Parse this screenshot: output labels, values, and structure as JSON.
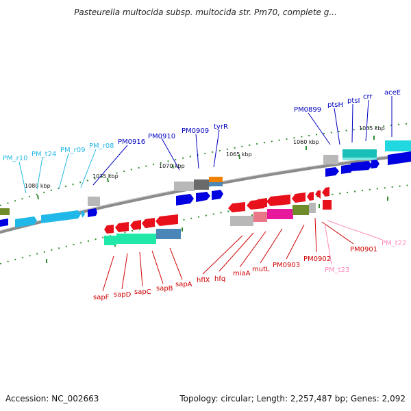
{
  "title": "Pasteurella multocida subsp. multocida str. Pm70, complete g...",
  "footer": {
    "accession": "Accession: NC_002663",
    "summary": "Topology: circular; Length: 2,257,487 bp; Genes: 2,092"
  },
  "colors": {
    "backbone": "#8c8c8c",
    "tick_green": "#2e8b2e",
    "label_blue": "#0000c0",
    "label_cyan": "#22b8e6",
    "label_red": "#d00000",
    "label_pink": "#ff88bb",
    "gene_red": "#e8101a",
    "gene_blue": "#0000e0",
    "gene_cyan": "#20b8e8",
    "gene_gray": "#b8b8b8",
    "gene_darkgray": "#6a6a6a",
    "gene_teal": "#18c0b8",
    "gene_green": "#20e8a8",
    "gene_steel": "#4a86b8",
    "gene_olive": "#6e8c2a",
    "gene_magenta": "#e8189c",
    "gene_pink": "#e87888",
    "gene_orange": "#f08000"
  },
  "scale_ticks": [
    "1080 kbp",
    "1075 kbp",
    "1070 kbp",
    "1065 kbp",
    "1060 kbp",
    "1055 kbp"
  ],
  "upper_labels": [
    {
      "text": "PM_r10",
      "color": "label_cyan"
    },
    {
      "text": "PM_t24",
      "color": "label_cyan"
    },
    {
      "text": "PM_r09",
      "color": "label_cyan"
    },
    {
      "text": "PM_r08",
      "color": "label_cyan"
    },
    {
      "text": "PM0916",
      "color": "label_blue"
    },
    {
      "text": "PM0910",
      "color": "label_blue"
    },
    {
      "text": "PM0909",
      "color": "label_blue"
    },
    {
      "text": "tyrR",
      "color": "label_blue"
    },
    {
      "text": "PM0899",
      "color": "label_blue"
    },
    {
      "text": "ptsH",
      "color": "label_blue"
    },
    {
      "text": "ptsI",
      "color": "label_blue"
    },
    {
      "text": "crr",
      "color": "label_blue"
    },
    {
      "text": "aceE",
      "color": "label_blue"
    }
  ],
  "lower_labels": [
    {
      "text": "sapF",
      "color": "label_red"
    },
    {
      "text": "sapD",
      "color": "label_red"
    },
    {
      "text": "sapC",
      "color": "label_red"
    },
    {
      "text": "sapB",
      "color": "label_red"
    },
    {
      "text": "sapA",
      "color": "label_red"
    },
    {
      "text": "hflX",
      "color": "label_red"
    },
    {
      "text": "hfq",
      "color": "label_red"
    },
    {
      "text": "miaA",
      "color": "label_red"
    },
    {
      "text": "mutL",
      "color": "label_red"
    },
    {
      "text": "PM0903",
      "color": "label_red"
    },
    {
      "text": "PM0902",
      "color": "label_red"
    },
    {
      "text": "PM0901",
      "color": "label_red"
    },
    {
      "text": "PM_t23",
      "color": "label_pink"
    },
    {
      "text": "PM_t22",
      "color": "label_pink"
    }
  ]
}
